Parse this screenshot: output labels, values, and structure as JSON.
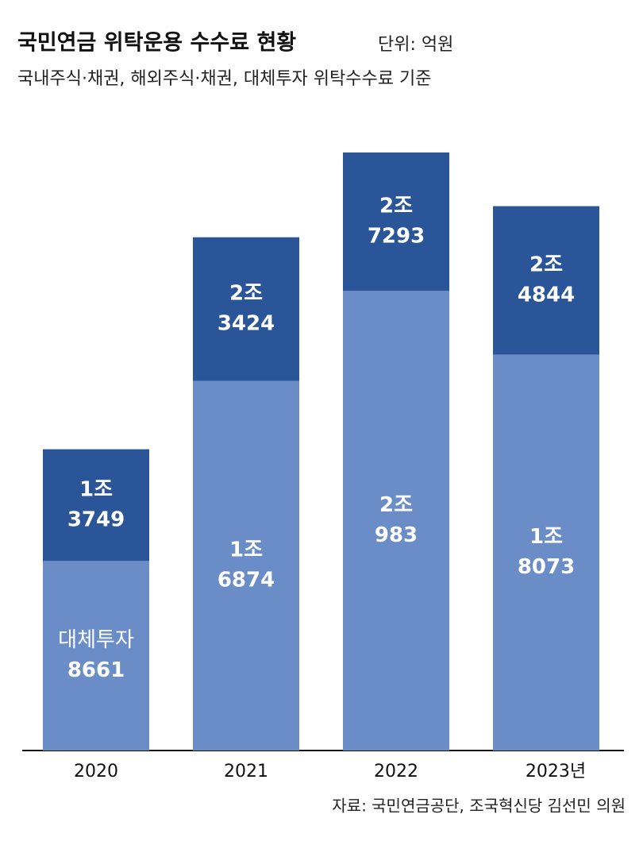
{
  "chart_data": {
    "type": "bar",
    "title": "국민연금 위탁운용 수수료 현황",
    "unit": "단위: 억원",
    "subtitle": "국내주식·채권, 해외주식·채권, 대체투자 위탁수수료 기준",
    "source": "자료: 국민연금공단, 조국혁신당 김선민 의원",
    "categories": [
      "2020",
      "2021",
      "2022",
      "2023년"
    ],
    "series": [
      {
        "name": "대체투자",
        "color": "#6a8dc8",
        "values": [
          8661,
          16874,
          20983,
          18073
        ],
        "value_labels": [
          [
            "8661"
          ],
          [
            "1조",
            "6874"
          ],
          [
            "2조",
            "983"
          ],
          [
            "1조",
            "8073"
          ]
        ]
      },
      {
        "color": "#2b5599",
        "values": [
          13749,
          23424,
          27293,
          24844
        ],
        "value_labels": [
          [
            "1조",
            "3749"
          ],
          [
            "2조",
            "3424"
          ],
          [
            "2조",
            "7293"
          ],
          [
            "2조",
            "4844"
          ]
        ]
      }
    ]
  }
}
